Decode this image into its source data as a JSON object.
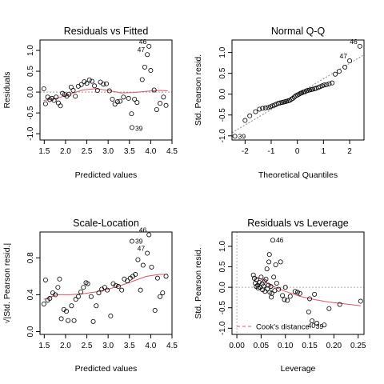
{
  "chart_data": [
    {
      "type": "scatter",
      "title": "Residuals vs Fitted",
      "xlabel": "Predicted values",
      "ylabel": "Residuals",
      "xlim": [
        1.4,
        4.5
      ],
      "ylim": [
        -1.15,
        1.25
      ],
      "xticks": [
        "1.5",
        "2.0",
        "2.5",
        "3.0",
        "3.5",
        "4.0",
        "4.5"
      ],
      "yticks": [
        "-1.0",
        "-0.5",
        "0.0",
        "0.5",
        "1.0"
      ],
      "smoother_color": "#DF536B",
      "points": [
        {
          "x": 1.49,
          "y": 0.08
        },
        {
          "x": 1.53,
          "y": -0.28
        },
        {
          "x": 1.58,
          "y": -0.12
        },
        {
          "x": 1.63,
          "y": -0.18
        },
        {
          "x": 1.68,
          "y": -0.15
        },
        {
          "x": 1.73,
          "y": -0.2
        },
        {
          "x": 1.78,
          "y": -0.12
        },
        {
          "x": 1.83,
          "y": -0.26
        },
        {
          "x": 1.88,
          "y": -0.33
        },
        {
          "x": 1.93,
          "y": -0.03
        },
        {
          "x": 1.98,
          "y": -0.06
        },
        {
          "x": 2.03,
          "y": -0.1
        },
        {
          "x": 2.08,
          "y": -0.05
        },
        {
          "x": 2.13,
          "y": 0.12
        },
        {
          "x": 2.18,
          "y": 0.04
        },
        {
          "x": 2.23,
          "y": -0.1
        },
        {
          "x": 2.3,
          "y": 0.14
        },
        {
          "x": 2.37,
          "y": 0.18
        },
        {
          "x": 2.44,
          "y": 0.25
        },
        {
          "x": 2.5,
          "y": 0.21
        },
        {
          "x": 2.56,
          "y": 0.29
        },
        {
          "x": 2.62,
          "y": 0.26
        },
        {
          "x": 2.68,
          "y": 0.15
        },
        {
          "x": 2.75,
          "y": 0.04
        },
        {
          "x": 2.82,
          "y": 0.24
        },
        {
          "x": 2.89,
          "y": 0.19
        },
        {
          "x": 2.96,
          "y": 0.2
        },
        {
          "x": 3.03,
          "y": 0.03
        },
        {
          "x": 3.1,
          "y": -0.17
        },
        {
          "x": 3.16,
          "y": -0.29
        },
        {
          "x": 3.22,
          "y": -0.23
        },
        {
          "x": 3.28,
          "y": -0.22
        },
        {
          "x": 3.36,
          "y": -0.12
        },
        {
          "x": 3.48,
          "y": -0.15
        },
        {
          "x": 3.55,
          "y": -0.52
        },
        {
          "x": 3.62,
          "y": -0.17
        },
        {
          "x": 3.68,
          "y": -0.25
        },
        {
          "x": 3.56,
          "y": -0.85,
          "label": "39"
        },
        {
          "x": 3.8,
          "y": 0.3
        },
        {
          "x": 3.86,
          "y": 0.6
        },
        {
          "x": 3.92,
          "y": 0.9,
          "label": "47"
        },
        {
          "x": 3.96,
          "y": 1.1,
          "label": "46"
        },
        {
          "x": 4.0,
          "y": 0.52
        },
        {
          "x": 4.08,
          "y": 0.05
        },
        {
          "x": 4.14,
          "y": -0.42
        },
        {
          "x": 4.22,
          "y": -0.27
        },
        {
          "x": 4.3,
          "y": -0.12
        },
        {
          "x": 4.36,
          "y": -0.32
        }
      ],
      "smoother": [
        [
          1.49,
          -0.2
        ],
        [
          1.8,
          -0.15
        ],
        [
          2.1,
          -0.05
        ],
        [
          2.4,
          0.05
        ],
        [
          2.7,
          0.08
        ],
        [
          3.0,
          0.04
        ],
        [
          3.3,
          -0.02
        ],
        [
          3.6,
          -0.01
        ],
        [
          3.9,
          0.02
        ],
        [
          4.2,
          0.04
        ],
        [
          4.4,
          0.03
        ]
      ]
    },
    {
      "type": "scatter",
      "title": "Normal Q-Q",
      "xlabel": "Theoretical Quantiles",
      "ylabel": "Std. Pearson resid.",
      "xlim": [
        -2.5,
        2.55
      ],
      "ylim": [
        -1.1,
        1.3
      ],
      "xticks": [
        "-2",
        "-1",
        "0",
        "1",
        "2"
      ],
      "yticks": [
        "-1.0",
        "-0.5",
        "0.0",
        "0.5",
        "1.0"
      ],
      "reference_line": {
        "intercept": 0.0,
        "slope": 0.37
      },
      "points": [
        {
          "x": -2.39,
          "y": -1.01,
          "label": "39"
        },
        {
          "x": -2.0,
          "y": -0.63
        },
        {
          "x": -1.82,
          "y": -0.52
        },
        {
          "x": -1.6,
          "y": -0.42
        },
        {
          "x": -1.45,
          "y": -0.36
        },
        {
          "x": -1.33,
          "y": -0.34
        },
        {
          "x": -1.22,
          "y": -0.33
        },
        {
          "x": -1.12,
          "y": -0.32
        },
        {
          "x": -1.03,
          "y": -0.3
        },
        {
          "x": -0.95,
          "y": -0.28
        },
        {
          "x": -0.87,
          "y": -0.26
        },
        {
          "x": -0.8,
          "y": -0.24
        },
        {
          "x": -0.72,
          "y": -0.22
        },
        {
          "x": -0.66,
          "y": -0.21
        },
        {
          "x": -0.59,
          "y": -0.2
        },
        {
          "x": -0.53,
          "y": -0.19
        },
        {
          "x": -0.47,
          "y": -0.18
        },
        {
          "x": -0.41,
          "y": -0.17
        },
        {
          "x": -0.35,
          "y": -0.16
        },
        {
          "x": -0.29,
          "y": -0.15
        },
        {
          "x": -0.23,
          "y": -0.12
        },
        {
          "x": -0.17,
          "y": -0.1
        },
        {
          "x": -0.12,
          "y": -0.07
        },
        {
          "x": -0.06,
          "y": -0.04
        },
        {
          "x": 0.0,
          "y": -0.02
        },
        {
          "x": 0.06,
          "y": 0.0
        },
        {
          "x": 0.12,
          "y": 0.02
        },
        {
          "x": 0.17,
          "y": 0.03
        },
        {
          "x": 0.23,
          "y": 0.05
        },
        {
          "x": 0.29,
          "y": 0.06
        },
        {
          "x": 0.35,
          "y": 0.08
        },
        {
          "x": 0.41,
          "y": 0.09
        },
        {
          "x": 0.47,
          "y": 0.1
        },
        {
          "x": 0.53,
          "y": 0.11
        },
        {
          "x": 0.59,
          "y": 0.12
        },
        {
          "x": 0.66,
          "y": 0.13
        },
        {
          "x": 0.72,
          "y": 0.14
        },
        {
          "x": 0.8,
          "y": 0.16
        },
        {
          "x": 0.87,
          "y": 0.18
        },
        {
          "x": 0.95,
          "y": 0.2
        },
        {
          "x": 1.03,
          "y": 0.22
        },
        {
          "x": 1.12,
          "y": 0.23
        },
        {
          "x": 1.22,
          "y": 0.25
        },
        {
          "x": 1.33,
          "y": 0.27
        },
        {
          "x": 1.45,
          "y": 0.48
        },
        {
          "x": 1.6,
          "y": 0.55
        },
        {
          "x": 1.82,
          "y": 0.65
        },
        {
          "x": 2.0,
          "y": 0.8,
          "label": "47"
        },
        {
          "x": 2.39,
          "y": 1.15,
          "label": "46"
        }
      ]
    },
    {
      "type": "scatter",
      "title": "Scale-Location",
      "xlabel": "Predicted values",
      "ylabel": "√|Std. Pearson resid.|",
      "xlim": [
        1.4,
        4.5
      ],
      "ylim": [
        -0.03,
        1.08
      ],
      "xticks": [
        "1.5",
        "2.0",
        "2.5",
        "3.0",
        "3.5",
        "4.0",
        "4.5"
      ],
      "yticks": [
        "0.0",
        "0.4",
        "0.8"
      ],
      "smoother_color": "#DF536B",
      "points": [
        {
          "x": 1.49,
          "y": 0.3
        },
        {
          "x": 1.53,
          "y": 0.56
        },
        {
          "x": 1.58,
          "y": 0.34
        },
        {
          "x": 1.63,
          "y": 0.36
        },
        {
          "x": 1.7,
          "y": 0.42
        },
        {
          "x": 1.76,
          "y": 0.4
        },
        {
          "x": 1.82,
          "y": 0.48
        },
        {
          "x": 1.86,
          "y": 0.57
        },
        {
          "x": 1.9,
          "y": 0.14
        },
        {
          "x": 1.96,
          "y": 0.24
        },
        {
          "x": 2.02,
          "y": 0.22
        },
        {
          "x": 2.06,
          "y": 0.12
        },
        {
          "x": 2.14,
          "y": 0.28
        },
        {
          "x": 2.2,
          "y": 0.12
        },
        {
          "x": 2.24,
          "y": 0.35
        },
        {
          "x": 2.3,
          "y": 0.38
        },
        {
          "x": 2.36,
          "y": 0.43
        },
        {
          "x": 2.42,
          "y": 0.48
        },
        {
          "x": 2.48,
          "y": 0.53
        },
        {
          "x": 2.52,
          "y": 0.52
        },
        {
          "x": 2.6,
          "y": 0.38
        },
        {
          "x": 2.65,
          "y": 0.11
        },
        {
          "x": 2.72,
          "y": 0.28
        },
        {
          "x": 2.78,
          "y": 0.42
        },
        {
          "x": 2.85,
          "y": 0.46
        },
        {
          "x": 2.92,
          "y": 0.48
        },
        {
          "x": 2.98,
          "y": 0.45
        },
        {
          "x": 3.06,
          "y": 0.17
        },
        {
          "x": 3.12,
          "y": 0.52
        },
        {
          "x": 3.18,
          "y": 0.5
        },
        {
          "x": 3.24,
          "y": 0.49
        },
        {
          "x": 3.32,
          "y": 0.45
        },
        {
          "x": 3.38,
          "y": 0.57
        },
        {
          "x": 3.45,
          "y": 0.55
        },
        {
          "x": 3.52,
          "y": 0.58
        },
        {
          "x": 3.58,
          "y": 0.6
        },
        {
          "x": 3.64,
          "y": 0.62
        },
        {
          "x": 3.56,
          "y": 0.98,
          "label": "39"
        },
        {
          "x": 3.7,
          "y": 0.78
        },
        {
          "x": 3.76,
          "y": 0.45
        },
        {
          "x": 3.82,
          "y": 0.72
        },
        {
          "x": 3.92,
          "y": 0.85,
          "label": "47"
        },
        {
          "x": 3.96,
          "y": 1.05,
          "label": "46"
        },
        {
          "x": 4.02,
          "y": 0.7
        },
        {
          "x": 4.1,
          "y": 0.23
        },
        {
          "x": 4.16,
          "y": 0.58
        },
        {
          "x": 4.22,
          "y": 0.38
        },
        {
          "x": 4.28,
          "y": 0.42
        },
        {
          "x": 4.36,
          "y": 0.6
        }
      ],
      "smoother": [
        [
          1.49,
          0.35
        ],
        [
          1.8,
          0.4
        ],
        [
          2.1,
          0.4
        ],
        [
          2.4,
          0.41
        ],
        [
          2.7,
          0.43
        ],
        [
          3.0,
          0.46
        ],
        [
          3.3,
          0.5
        ],
        [
          3.6,
          0.55
        ],
        [
          3.9,
          0.6
        ],
        [
          4.2,
          0.62
        ],
        [
          4.4,
          0.62
        ]
      ]
    },
    {
      "type": "scatter",
      "title": "Residuals vs Leverage",
      "xlabel": "Leverage",
      "ylabel": "Std. Pearson resid.",
      "xlim": [
        -0.01,
        0.262
      ],
      "ylim": [
        -1.15,
        1.35
      ],
      "xticks": [
        "0.00",
        "0.05",
        "0.10",
        "0.15",
        "0.20",
        "0.25"
      ],
      "yticks": [
        "-1.0",
        "-0.5",
        "0.0",
        "0.5",
        "1.0"
      ],
      "smoother_color": "#DF536B",
      "legend": {
        "label": "Cook's distance",
        "position": "bottom-left"
      },
      "points": [
        {
          "x": 0.034,
          "y": 0.3
        },
        {
          "x": 0.036,
          "y": 0.22
        },
        {
          "x": 0.038,
          "y": 0.1
        },
        {
          "x": 0.04,
          "y": 0.02
        },
        {
          "x": 0.041,
          "y": 0.18
        },
        {
          "x": 0.043,
          "y": 0.05
        },
        {
          "x": 0.044,
          "y": -0.02
        },
        {
          "x": 0.046,
          "y": 0.12
        },
        {
          "x": 0.048,
          "y": 0.0
        },
        {
          "x": 0.05,
          "y": 0.25
        },
        {
          "x": 0.052,
          "y": 0.08
        },
        {
          "x": 0.053,
          "y": -0.06
        },
        {
          "x": 0.055,
          "y": 0.03
        },
        {
          "x": 0.057,
          "y": 0.15
        },
        {
          "x": 0.058,
          "y": -0.1
        },
        {
          "x": 0.06,
          "y": 0.2
        },
        {
          "x": 0.062,
          "y": 0.45
        },
        {
          "x": 0.063,
          "y": -0.04
        },
        {
          "x": 0.065,
          "y": 0.05
        },
        {
          "x": 0.066,
          "y": 0.62
        },
        {
          "x": 0.067,
          "y": 0.8
        },
        {
          "x": 0.068,
          "y": -0.12
        },
        {
          "x": 0.07,
          "y": 0.02
        },
        {
          "x": 0.071,
          "y": -0.24
        },
        {
          "x": 0.072,
          "y": -0.15
        },
        {
          "x": 0.074,
          "y": 1.15,
          "label": "46"
        },
        {
          "x": 0.076,
          "y": 0.25
        },
        {
          "x": 0.078,
          "y": -0.08
        },
        {
          "x": 0.08,
          "y": 0.55
        },
        {
          "x": 0.082,
          "y": 0.1
        },
        {
          "x": 0.086,
          "y": -0.05
        },
        {
          "x": 0.09,
          "y": 0.62
        },
        {
          "x": 0.094,
          "y": -0.2
        },
        {
          "x": 0.098,
          "y": -0.3
        },
        {
          "x": 0.1,
          "y": 0.0
        },
        {
          "x": 0.104,
          "y": -0.32
        },
        {
          "x": 0.11,
          "y": -0.22
        },
        {
          "x": 0.12,
          "y": -0.1
        },
        {
          "x": 0.125,
          "y": -0.12
        },
        {
          "x": 0.13,
          "y": -0.15
        },
        {
          "x": 0.148,
          "y": -0.6
        },
        {
          "x": 0.15,
          "y": -0.28
        },
        {
          "x": 0.155,
          "y": -0.82
        },
        {
          "x": 0.16,
          "y": -0.17
        },
        {
          "x": 0.165,
          "y": -0.88,
          "label": "40"
        },
        {
          "x": 0.18,
          "y": -0.92,
          "label": "39"
        },
        {
          "x": 0.19,
          "y": -0.52
        },
        {
          "x": 0.212,
          "y": -0.42
        },
        {
          "x": 0.255,
          "y": -0.34
        }
      ],
      "smoother": [
        [
          0.034,
          0.28
        ],
        [
          0.05,
          0.2
        ],
        [
          0.065,
          0.08
        ],
        [
          0.08,
          0.0
        ],
        [
          0.1,
          -0.1
        ],
        [
          0.13,
          -0.22
        ],
        [
          0.16,
          -0.3
        ],
        [
          0.19,
          -0.36
        ],
        [
          0.22,
          -0.4
        ],
        [
          0.255,
          -0.45
        ]
      ]
    }
  ]
}
